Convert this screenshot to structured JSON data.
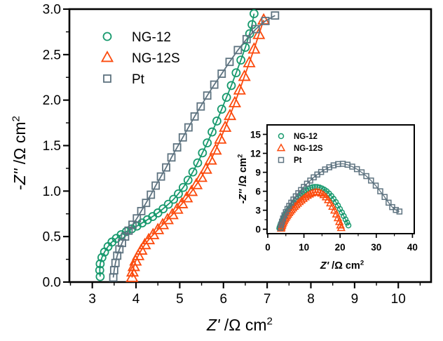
{
  "figure": {
    "description": "Nyquist electrochemical impedance plot with inset",
    "background": "#ffffff"
  },
  "colors": {
    "axis": "#000000",
    "green": "#17996d",
    "orange": "#fb4a0d",
    "gray": "#5e7380"
  },
  "chart_data": [
    {
      "id": "main",
      "type": "scatter",
      "title": "",
      "xlabel": "Z' /Ω cm²",
      "ylabel": "-Z'' /Ω cm²",
      "xlim": [
        2.476,
        10.75
      ],
      "ylim": [
        0.0,
        3.0
      ],
      "xticks": [
        3,
        4,
        5,
        6,
        7,
        8,
        9,
        10
      ],
      "xtick_labels": [
        "3",
        "4",
        "5",
        "6",
        "7",
        "8",
        "9",
        "10"
      ],
      "xminor": [
        2.5,
        3.5,
        4.5,
        5.5,
        6.5,
        7.5,
        8.5,
        9.5,
        10.5
      ],
      "yticks": [
        0.0,
        0.5,
        1.0,
        1.5,
        2.0,
        2.5,
        3.0
      ],
      "ytick_labels": [
        "0.0",
        "0.5",
        "1.0",
        "1.5",
        "2.0",
        "2.5",
        "3.0"
      ],
      "yminor": [
        0.25,
        0.75,
        1.25,
        1.75,
        2.25,
        2.75
      ],
      "grid": false,
      "legend_position": "top-left",
      "series": [
        {
          "name": "NG-12",
          "marker": "circle",
          "color": "green",
          "points": [
            [
              3.18,
              0.06
            ],
            [
              3.17,
              0.13
            ],
            [
              3.18,
              0.2
            ],
            [
              3.22,
              0.27
            ],
            [
              3.28,
              0.33
            ],
            [
              3.36,
              0.39
            ],
            [
              3.45,
              0.44
            ],
            [
              3.55,
              0.48
            ],
            [
              3.66,
              0.52
            ],
            [
              3.78,
              0.555
            ],
            [
              3.9,
              0.585
            ],
            [
              4.02,
              0.615
            ],
            [
              4.14,
              0.65
            ],
            [
              4.26,
              0.685
            ],
            [
              4.38,
              0.72
            ],
            [
              4.5,
              0.76
            ],
            [
              4.62,
              0.805
            ],
            [
              4.74,
              0.855
            ],
            [
              4.86,
              0.91
            ],
            [
              4.97,
              0.97
            ],
            [
              5.08,
              1.04
            ],
            [
              5.19,
              1.12
            ],
            [
              5.3,
              1.21
            ],
            [
              5.41,
              1.31
            ],
            [
              5.52,
              1.42
            ],
            [
              5.63,
              1.53
            ],
            [
              5.74,
              1.65
            ],
            [
              5.85,
              1.77
            ],
            [
              5.96,
              1.9
            ],
            [
              6.07,
              2.03
            ],
            [
              6.18,
              2.16
            ],
            [
              6.29,
              2.3
            ],
            [
              6.4,
              2.44
            ],
            [
              6.5,
              2.58
            ],
            [
              6.6,
              2.73
            ],
            [
              6.655,
              2.83
            ],
            [
              6.7,
              2.95
            ]
          ]
        },
        {
          "name": "NG-12S",
          "marker": "triangle",
          "color": "orange",
          "points": [
            [
              3.91,
              0.05
            ],
            [
              3.92,
              0.11
            ],
            [
              3.95,
              0.17
            ],
            [
              3.99,
              0.23
            ],
            [
              4.05,
              0.29
            ],
            [
              4.12,
              0.35
            ],
            [
              4.2,
              0.41
            ],
            [
              4.29,
              0.465
            ],
            [
              4.39,
              0.52
            ],
            [
              4.5,
              0.575
            ],
            [
              4.61,
              0.63
            ],
            [
              4.72,
              0.685
            ],
            [
              4.83,
              0.74
            ],
            [
              4.94,
              0.8
            ],
            [
              5.05,
              0.86
            ],
            [
              5.16,
              0.925
            ],
            [
              5.27,
              0.995
            ],
            [
              5.38,
              1.07
            ],
            [
              5.49,
              1.15
            ],
            [
              5.6,
              1.24
            ],
            [
              5.71,
              1.34
            ],
            [
              5.82,
              1.45
            ],
            [
              5.93,
              1.57
            ],
            [
              6.04,
              1.7
            ],
            [
              6.15,
              1.83
            ],
            [
              6.26,
              1.97
            ],
            [
              6.37,
              2.11
            ],
            [
              6.48,
              2.26
            ],
            [
              6.59,
              2.41
            ],
            [
              6.7,
              2.56
            ],
            [
              6.81,
              2.72
            ],
            [
              6.92,
              2.88
            ]
          ]
        },
        {
          "name": "Pt",
          "marker": "square",
          "color": "gray",
          "points": [
            [
              3.48,
              0.05
            ],
            [
              3.5,
              0.13
            ],
            [
              3.53,
              0.21
            ],
            [
              3.57,
              0.29
            ],
            [
              3.62,
              0.36
            ],
            [
              3.68,
              0.43
            ],
            [
              3.75,
              0.5
            ],
            [
              3.83,
              0.565
            ],
            [
              3.92,
              0.63
            ],
            [
              4.02,
              0.7
            ],
            [
              4.12,
              0.78
            ],
            [
              4.23,
              0.87
            ],
            [
              4.34,
              0.96
            ],
            [
              4.45,
              1.06
            ],
            [
              4.57,
              1.16
            ],
            [
              4.69,
              1.26
            ],
            [
              4.81,
              1.37
            ],
            [
              4.94,
              1.48
            ],
            [
              5.07,
              1.59
            ],
            [
              5.2,
              1.7
            ],
            [
              5.34,
              1.82
            ],
            [
              5.48,
              1.93
            ],
            [
              5.63,
              2.05
            ],
            [
              5.79,
              2.17
            ],
            [
              5.96,
              2.29
            ],
            [
              6.14,
              2.42
            ],
            [
              6.33,
              2.55
            ],
            [
              6.53,
              2.67
            ],
            [
              6.74,
              2.78
            ],
            [
              6.96,
              2.87
            ],
            [
              7.18,
              2.93
            ]
          ]
        }
      ]
    },
    {
      "id": "inset",
      "type": "scatter",
      "title": "",
      "xlabel": "Z' /Ω cm²",
      "ylabel": "-Z'' /Ω cm²",
      "xlim": [
        -0.19,
        40.5
      ],
      "ylim": [
        -0.7,
        16.5
      ],
      "xticks": [
        0,
        10,
        20,
        30,
        40
      ],
      "xtick_labels": [
        "0",
        "10",
        "20",
        "30",
        "40"
      ],
      "xminor": [
        5,
        15,
        25,
        35
      ],
      "yticks": [
        0,
        3,
        6,
        9,
        12,
        15
      ],
      "ytick_labels": [
        "0",
        "3",
        "6",
        "9",
        "12",
        "15"
      ],
      "yminor": [
        1.5,
        4.5,
        7.5,
        10.5,
        13.5
      ],
      "grid": false,
      "legend_position": "top-left",
      "series": [
        {
          "name": "NG-12",
          "marker": "circle",
          "color": "green",
          "points": [
            [
              3.2,
              0.15
            ],
            [
              3.3,
              0.35
            ],
            [
              3.45,
              0.6
            ],
            [
              3.6,
              0.85
            ],
            [
              3.8,
              1.1
            ],
            [
              4.0,
              1.35
            ],
            [
              4.2,
              1.6
            ],
            [
              4.45,
              1.85
            ],
            [
              4.7,
              2.1
            ],
            [
              4.95,
              2.35
            ],
            [
              5.2,
              2.6
            ],
            [
              5.5,
              2.85
            ],
            [
              5.8,
              3.1
            ],
            [
              6.1,
              3.35
            ],
            [
              6.45,
              3.6
            ],
            [
              6.8,
              3.85
            ],
            [
              7.2,
              4.15
            ],
            [
              7.6,
              4.45
            ],
            [
              8.0,
              4.75
            ],
            [
              8.45,
              5.05
            ],
            [
              8.9,
              5.35
            ],
            [
              9.4,
              5.65
            ],
            [
              9.95,
              5.95
            ],
            [
              10.5,
              6.2
            ],
            [
              11.1,
              6.4
            ],
            [
              11.75,
              6.55
            ],
            [
              12.4,
              6.65
            ],
            [
              13.05,
              6.7
            ],
            [
              13.7,
              6.68
            ],
            [
              14.35,
              6.6
            ],
            [
              15.0,
              6.45
            ],
            [
              15.65,
              6.25
            ],
            [
              16.3,
              6.0
            ],
            [
              16.95,
              5.65
            ],
            [
              17.6,
              5.25
            ],
            [
              18.2,
              4.8
            ],
            [
              18.8,
              4.3
            ],
            [
              19.4,
              3.75
            ],
            [
              19.95,
              3.2
            ],
            [
              20.5,
              2.65
            ],
            [
              21.0,
              2.1
            ],
            [
              21.5,
              1.55
            ],
            [
              21.95,
              1.05
            ],
            [
              22.3,
              0.6
            ]
          ]
        },
        {
          "name": "NG-12S",
          "marker": "triangle",
          "color": "orange",
          "points": [
            [
              3.7,
              0.1
            ],
            [
              3.8,
              0.3
            ],
            [
              3.95,
              0.55
            ],
            [
              4.1,
              0.8
            ],
            [
              4.3,
              1.05
            ],
            [
              4.5,
              1.3
            ],
            [
              4.75,
              1.55
            ],
            [
              5.0,
              1.8
            ],
            [
              5.3,
              2.05
            ],
            [
              5.6,
              2.3
            ],
            [
              5.9,
              2.55
            ],
            [
              6.25,
              2.8
            ],
            [
              6.6,
              3.05
            ],
            [
              7.0,
              3.3
            ],
            [
              7.4,
              3.55
            ],
            [
              7.85,
              3.8
            ],
            [
              8.3,
              4.05
            ],
            [
              8.8,
              4.3
            ],
            [
              9.3,
              4.55
            ],
            [
              9.85,
              4.8
            ],
            [
              10.4,
              5.05
            ],
            [
              11.0,
              5.3
            ],
            [
              11.6,
              5.5
            ],
            [
              12.2,
              5.68
            ],
            [
              12.85,
              5.8
            ],
            [
              13.5,
              5.85
            ],
            [
              14.15,
              5.8
            ],
            [
              14.8,
              5.65
            ],
            [
              15.45,
              5.4
            ],
            [
              16.1,
              5.05
            ],
            [
              16.7,
              4.6
            ],
            [
              17.3,
              4.1
            ],
            [
              17.9,
              3.55
            ],
            [
              18.45,
              2.95
            ],
            [
              18.95,
              2.35
            ],
            [
              19.4,
              1.75
            ],
            [
              19.8,
              1.15
            ],
            [
              20.1,
              0.6
            ],
            [
              20.3,
              0.2
            ]
          ]
        },
        {
          "name": "Pt",
          "marker": "square",
          "color": "gray",
          "points": [
            [
              3.5,
              0.2
            ],
            [
              3.7,
              0.7
            ],
            [
              3.95,
              1.2
            ],
            [
              4.25,
              1.7
            ],
            [
              4.6,
              2.2
            ],
            [
              5.0,
              2.7
            ],
            [
              5.45,
              3.2
            ],
            [
              5.95,
              3.7
            ],
            [
              6.5,
              4.2
            ],
            [
              7.1,
              4.7
            ],
            [
              7.75,
              5.2
            ],
            [
              8.45,
              5.7
            ],
            [
              9.2,
              6.2
            ],
            [
              10.0,
              6.7
            ],
            [
              10.85,
              7.2
            ],
            [
              11.75,
              7.7
            ],
            [
              12.7,
              8.2
            ],
            [
              13.7,
              8.65
            ],
            [
              14.75,
              9.05
            ],
            [
              15.85,
              9.45
            ],
            [
              17.0,
              9.8
            ],
            [
              18.2,
              10.1
            ],
            [
              19.45,
              10.3
            ],
            [
              20.75,
              10.35
            ],
            [
              22.05,
              10.2
            ],
            [
              23.35,
              9.9
            ],
            [
              24.65,
              9.5
            ],
            [
              25.95,
              9.0
            ],
            [
              27.25,
              8.4
            ],
            [
              28.55,
              7.7
            ],
            [
              29.85,
              6.9
            ],
            [
              31.1,
              6.0
            ],
            [
              32.3,
              5.1
            ],
            [
              33.4,
              4.2
            ],
            [
              34.4,
              3.5
            ],
            [
              35.4,
              3.05
            ],
            [
              36.4,
              2.8
            ]
          ]
        }
      ]
    }
  ]
}
